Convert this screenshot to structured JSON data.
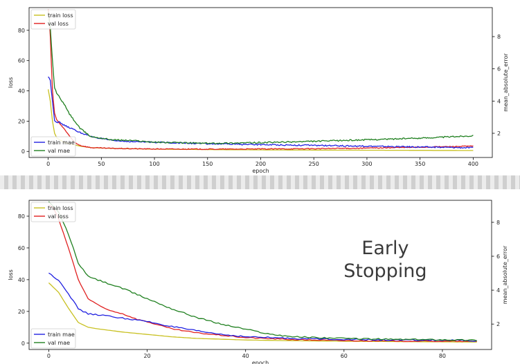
{
  "chart_data": [
    {
      "type": "line",
      "xlabel": "epoch",
      "ylabel": "loss",
      "y2label": "mean_absolute_error",
      "xlim": [
        -18,
        418
      ],
      "ylim": [
        -4,
        95
      ],
      "y2lim": [
        0.5,
        9.8
      ],
      "xticks": [
        0,
        50,
        100,
        150,
        200,
        250,
        300,
        350,
        400
      ],
      "yticks": [
        0,
        20,
        40,
        60,
        80
      ],
      "y2ticks": [
        2,
        4,
        6,
        8
      ],
      "annotation": "",
      "legend_left": {
        "placement": "upper-left",
        "entries": [
          "train loss",
          "val loss"
        ]
      },
      "legend_right": {
        "placement": "lower-left",
        "entries": [
          "train mae",
          "val mae"
        ]
      },
      "series": [
        {
          "name": "train loss",
          "axis": "left",
          "color": "#c8c020",
          "x": [
            0,
            2,
            4,
            6,
            8,
            10,
            15,
            20,
            30,
            40,
            60,
            100,
            150,
            200,
            250,
            300,
            350,
            400
          ],
          "y": [
            41,
            33,
            20,
            12,
            9,
            8,
            6,
            5,
            3.5,
            2.5,
            2,
            1.5,
            1.2,
            1.0,
            0.9,
            0.8,
            0.7,
            0.6
          ]
        },
        {
          "name": "val loss",
          "axis": "left",
          "color": "#e02020",
          "x": [
            0,
            1,
            2,
            4,
            6,
            8,
            10,
            15,
            20,
            25,
            30,
            40,
            60,
            100,
            150,
            200,
            250,
            300,
            350,
            400
          ],
          "y": [
            94,
            88,
            75,
            40,
            25,
            21,
            19,
            15,
            10,
            6,
            4,
            2.5,
            2,
            1.6,
            1.5,
            1.6,
            1.8,
            2.2,
            2.8,
            3.5
          ]
        },
        {
          "name": "train mae",
          "axis": "right",
          "color": "#2020e0",
          "x": [
            0,
            2,
            4,
            6,
            8,
            10,
            15,
            20,
            30,
            40,
            60,
            80,
            100,
            150,
            200,
            250,
            300,
            350,
            400
          ],
          "y": [
            5.5,
            5.3,
            4.0,
            2.8,
            2.7,
            2.7,
            2.5,
            2.35,
            2.05,
            1.8,
            1.55,
            1.48,
            1.45,
            1.35,
            1.3,
            1.25,
            1.2,
            1.15,
            1.1
          ]
        },
        {
          "name": "val mae",
          "axis": "right",
          "color": "#208020",
          "x": [
            0,
            2,
            4,
            6,
            8,
            10,
            15,
            20,
            30,
            40,
            60,
            80,
            100,
            150,
            200,
            250,
            300,
            350,
            400
          ],
          "y": [
            9.5,
            8.5,
            6.5,
            4.8,
            4.5,
            4.3,
            3.8,
            3.2,
            2.3,
            1.8,
            1.6,
            1.55,
            1.45,
            1.38,
            1.42,
            1.5,
            1.6,
            1.7,
            1.85
          ]
        }
      ]
    },
    {
      "type": "line",
      "xlabel": "epoch",
      "ylabel": "loss",
      "y2label": "mean_absolute_error",
      "xlim": [
        -4,
        90
      ],
      "ylim": [
        -4,
        90
      ],
      "y2lim": [
        0.5,
        9.3
      ],
      "xticks": [
        0,
        20,
        40,
        60,
        80
      ],
      "yticks": [
        0,
        20,
        40,
        60,
        80
      ],
      "y2ticks": [
        2,
        4,
        6,
        8
      ],
      "annotation": "Early\nStopping",
      "legend_left": {
        "placement": "upper-left",
        "entries": [
          "train loss",
          "val loss"
        ]
      },
      "legend_right": {
        "placement": "lower-left",
        "entries": [
          "train mae",
          "val mae"
        ]
      },
      "series": [
        {
          "name": "train loss",
          "axis": "left",
          "color": "#c8c020",
          "x": [
            0,
            2,
            4,
            6,
            8,
            10,
            15,
            20,
            25,
            30,
            35,
            40,
            50,
            60,
            70,
            80,
            87
          ],
          "y": [
            38,
            32,
            22,
            13,
            10,
            9,
            7,
            5.5,
            4,
            3,
            2.5,
            2,
            1.5,
            1.2,
            1.0,
            0.8,
            0.7
          ]
        },
        {
          "name": "val loss",
          "axis": "left",
          "color": "#e02020",
          "x": [
            0,
            1,
            2,
            4,
            6,
            8,
            10,
            12,
            15,
            18,
            20,
            25,
            30,
            35,
            40,
            50,
            60,
            70,
            80,
            87
          ],
          "y": [
            87,
            85,
            78,
            60,
            40,
            28,
            24,
            21,
            18.5,
            15,
            13.5,
            9,
            6.5,
            5,
            3.5,
            2.2,
            1.6,
            1.3,
            1.2,
            1.1
          ]
        },
        {
          "name": "train mae",
          "axis": "right",
          "color": "#2020e0",
          "x": [
            0,
            2,
            4,
            6,
            8,
            10,
            15,
            20,
            25,
            30,
            35,
            40,
            50,
            60,
            70,
            80,
            87
          ],
          "y": [
            5.0,
            4.6,
            3.8,
            2.9,
            2.6,
            2.55,
            2.35,
            2.15,
            1.85,
            1.6,
            1.4,
            1.25,
            1.15,
            1.1,
            1.05,
            1.05,
            1.0
          ]
        },
        {
          "name": "val mae",
          "axis": "right",
          "color": "#208020",
          "x": [
            0,
            2,
            4,
            6,
            8,
            10,
            15,
            20,
            25,
            30,
            35,
            40,
            45,
            50,
            60,
            70,
            80,
            87
          ],
          "y": [
            9.2,
            8.6,
            7.3,
            5.6,
            4.8,
            4.6,
            4.1,
            3.5,
            2.9,
            2.4,
            2.0,
            1.7,
            1.4,
            1.25,
            1.15,
            1.1,
            1.08,
            1.05
          ]
        }
      ]
    }
  ]
}
